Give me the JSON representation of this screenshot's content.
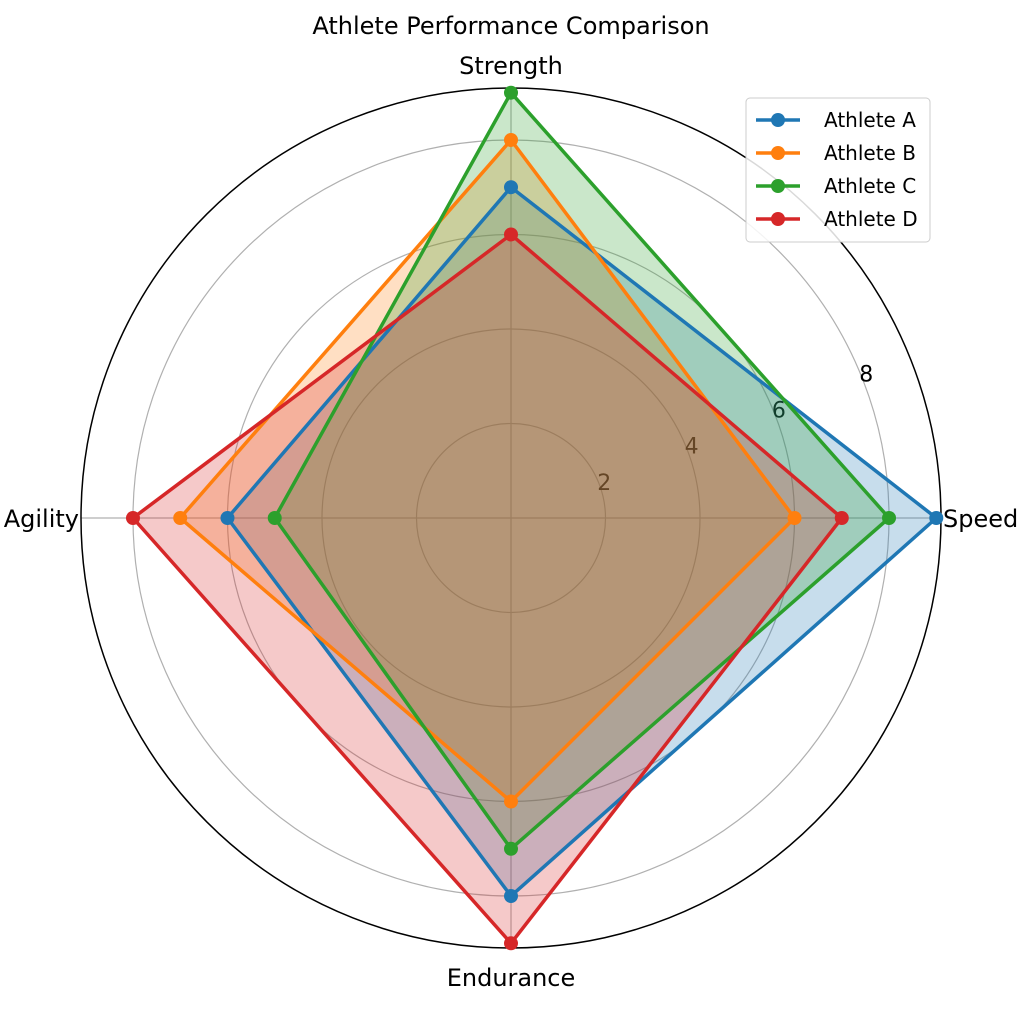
{
  "chart_data": {
    "type": "radar",
    "title": "Athlete Performance Comparison",
    "axes": [
      "Speed",
      "Strength",
      "Agility",
      "Endurance"
    ],
    "radial_ticks": [
      "2",
      "4",
      "6",
      "8"
    ],
    "rlim": [
      0,
      9.1
    ],
    "grid": true,
    "legend_position": "top-right",
    "series": [
      {
        "name": "Athlete A",
        "color": "#1f77b4",
        "values": [
          9,
          7,
          6,
          8
        ]
      },
      {
        "name": "Athlete B",
        "color": "#ff7f0e",
        "values": [
          6,
          8,
          7,
          6
        ]
      },
      {
        "name": "Athlete C",
        "color": "#2ca02c",
        "values": [
          8,
          9,
          5,
          7
        ]
      },
      {
        "name": "Athlete D",
        "color": "#d62728",
        "values": [
          7,
          6,
          8,
          9
        ]
      }
    ]
  }
}
